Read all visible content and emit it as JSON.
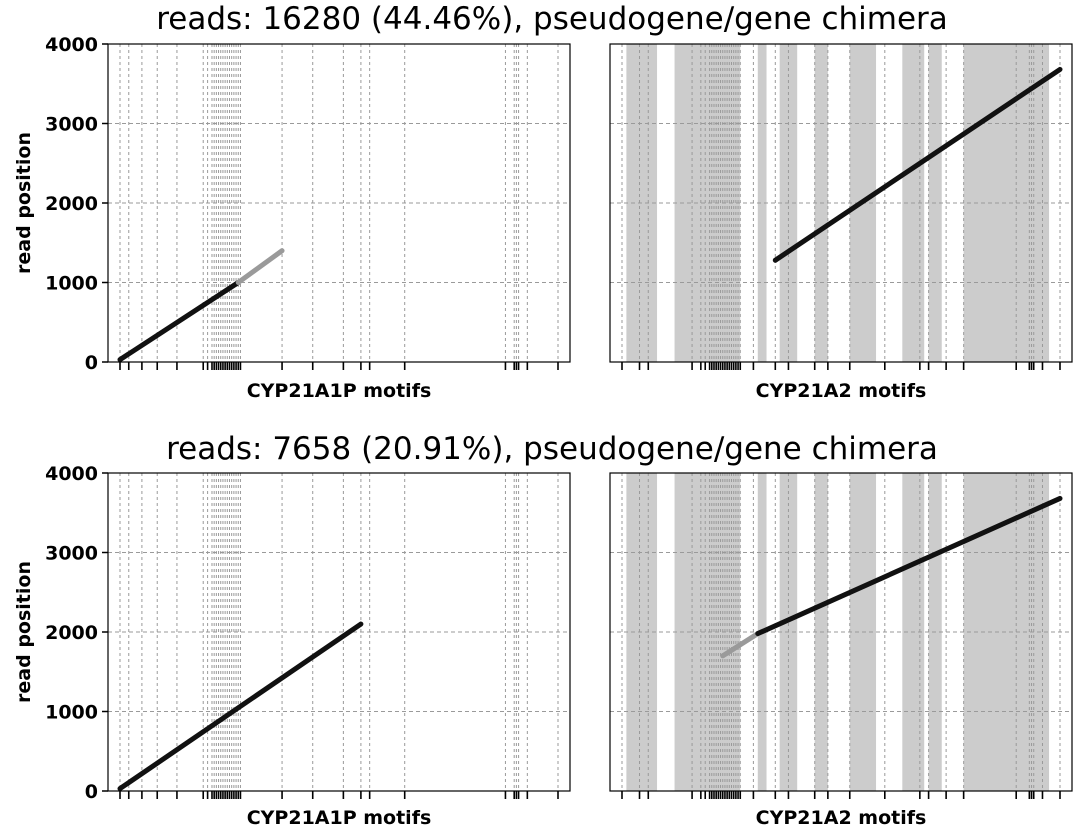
{
  "figure": {
    "ylabel": "read position",
    "ylim": [
      0,
      4000
    ],
    "yticks": [
      0,
      1000,
      2000,
      3000,
      4000
    ]
  },
  "rows": [
    {
      "title": "reads: 16280 (44.46%), pseudogene/gene chimera",
      "panels": [
        {
          "key": "pseudo",
          "xlabel": "CYP21A1P motifs",
          "segments": [
            {
              "x0": 0.0,
              "y0": 30,
              "x1": 0.27,
              "y1": 1000,
              "shade": "dark"
            },
            {
              "x0": 0.27,
              "y0": 1000,
              "x1": 0.37,
              "y1": 1400,
              "shade": "light"
            }
          ]
        },
        {
          "key": "gene",
          "xlabel": "CYP21A2 motifs",
          "segments": [
            {
              "x0": 0.35,
              "y0": 1280,
              "x1": 1.0,
              "y1": 3680,
              "shade": "dark"
            }
          ]
        }
      ]
    },
    {
      "title": "reads: 7658 (20.91%), pseudogene/gene chimera",
      "panels": [
        {
          "key": "pseudo",
          "xlabel": "CYP21A1P motifs",
          "segments": [
            {
              "x0": 0.0,
              "y0": 30,
              "x1": 0.55,
              "y1": 2100,
              "shade": "dark"
            }
          ]
        },
        {
          "key": "gene",
          "xlabel": "CYP21A2 motifs",
          "segments": [
            {
              "x0": 0.23,
              "y0": 1700,
              "x1": 0.31,
              "y1": 1980,
              "shade": "light"
            },
            {
              "x0": 0.31,
              "y0": 1980,
              "x1": 1.0,
              "y1": 3680,
              "shade": "dark"
            }
          ]
        }
      ]
    }
  ],
  "motifs": {
    "pseudo": [
      0.0,
      0.02,
      0.05,
      0.085,
      0.13,
      0.19,
      0.2,
      0.21,
      0.215,
      0.22,
      0.225,
      0.23,
      0.235,
      0.24,
      0.245,
      0.25,
      0.255,
      0.26,
      0.265,
      0.27,
      0.275,
      0.37,
      0.44,
      0.51,
      0.55,
      0.57,
      0.65,
      0.88,
      0.9,
      0.905,
      0.91,
      0.93,
      1.0
    ],
    "gene": [
      0.0,
      0.04,
      0.06,
      0.16,
      0.18,
      0.19,
      0.2,
      0.205,
      0.21,
      0.215,
      0.22,
      0.225,
      0.23,
      0.235,
      0.24,
      0.245,
      0.25,
      0.255,
      0.26,
      0.265,
      0.27,
      0.3,
      0.35,
      0.38,
      0.44,
      0.47,
      0.52,
      0.6,
      0.68,
      0.7,
      0.74,
      0.78,
      0.9,
      0.93,
      0.935,
      0.94,
      0.96,
      1.0
    ]
  },
  "gene_shaded_regions": [
    [
      0.01,
      0.08
    ],
    [
      0.12,
      0.27
    ],
    [
      0.31,
      0.33
    ],
    [
      0.36,
      0.4
    ],
    [
      0.44,
      0.47
    ],
    [
      0.52,
      0.58
    ],
    [
      0.64,
      0.69
    ],
    [
      0.7,
      0.73
    ],
    [
      0.78,
      0.975
    ]
  ],
  "colors": {
    "line_dark": "#111111",
    "line_light": "#9a9a9a",
    "shade": "#cccccc",
    "grid": "#9a9a9a"
  }
}
